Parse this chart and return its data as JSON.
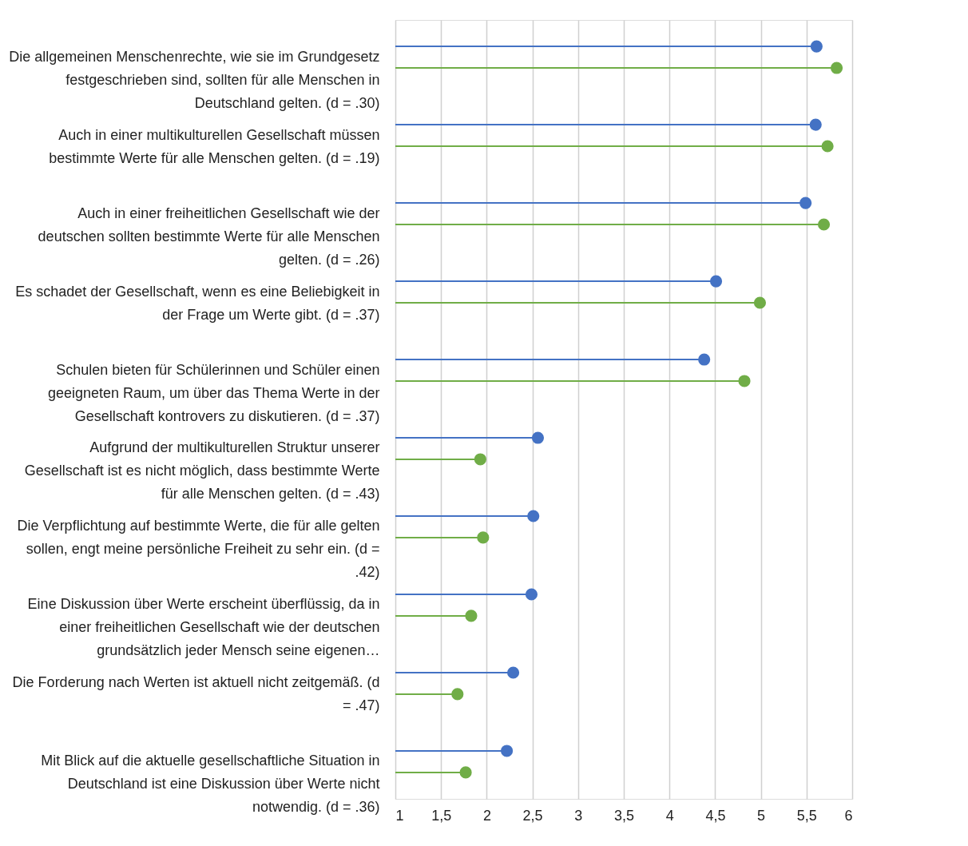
{
  "chart_data": {
    "type": "lollipop",
    "orientation": "horizontal",
    "categories": [
      "Die allgemeinen Menschenrechte, wie sie im Grundgesetz festgeschrieben sind, sollten für alle Menschen in Deutschland gelten. (d = .30)",
      "Auch in einer multikulturellen Gesellschaft müssen bestimmte Werte für alle Menschen gelten. (d = .19)",
      "Auch in einer freiheitlichen Gesellschaft wie der deutschen sollten bestimmte Werte für alle Menschen gelten. (d = .26)",
      "Es schadet der Gesellschaft, wenn es eine Beliebigkeit in der Frage um Werte gibt. (d = .37)",
      "Schulen bieten für Schülerinnen und Schüler einen geeigneten Raum, um über das Thema Werte in der Gesellschaft kontrovers zu diskutieren. (d = .37)",
      "Aufgrund der multikulturellen Struktur unserer Gesellschaft ist es nicht möglich, dass bestimmte Werte für alle Menschen gelten. (d = .43)",
      "Die Verpflichtung auf bestimmte Werte, die für alle gelten sollen, engt meine persönliche Freiheit zu sehr ein. (d = .42)",
      "Eine Diskussion über Werte erscheint überflüssig, da in einer freiheitlichen Gesellschaft wie der deutschen grundsätzlich jeder Mensch seine eigenen…",
      "Die Forderung nach Werten ist aktuell nicht zeitgemäß. (d = .47)",
      "Mit Blick auf die aktuelle gesellschaftliche Situation in Deutschland ist eine Diskussion über Werte nicht notwendig. (d = .36)"
    ],
    "series": [
      {
        "color": "#4472c4",
        "values": [
          5.61,
          5.6,
          5.49,
          4.51,
          4.38,
          2.56,
          2.51,
          2.49,
          2.29,
          2.22
        ]
      },
      {
        "color": "#70ad47",
        "values": [
          5.83,
          5.73,
          5.69,
          4.99,
          4.82,
          1.93,
          1.96,
          1.83,
          1.68,
          1.77
        ]
      }
    ],
    "xlim": [
      1,
      6
    ],
    "xticks": [
      1,
      {
        "value": 1.5,
        "label": "1,5"
      },
      2,
      {
        "value": 2.5,
        "label": "2,5"
      },
      3,
      {
        "value": 3.5,
        "label": "3,5"
      },
      4,
      {
        "value": 4.5,
        "label": "4,5"
      },
      5,
      {
        "value": 5.5,
        "label": "5,5"
      },
      6
    ],
    "grid": "x",
    "marker": "circle"
  }
}
